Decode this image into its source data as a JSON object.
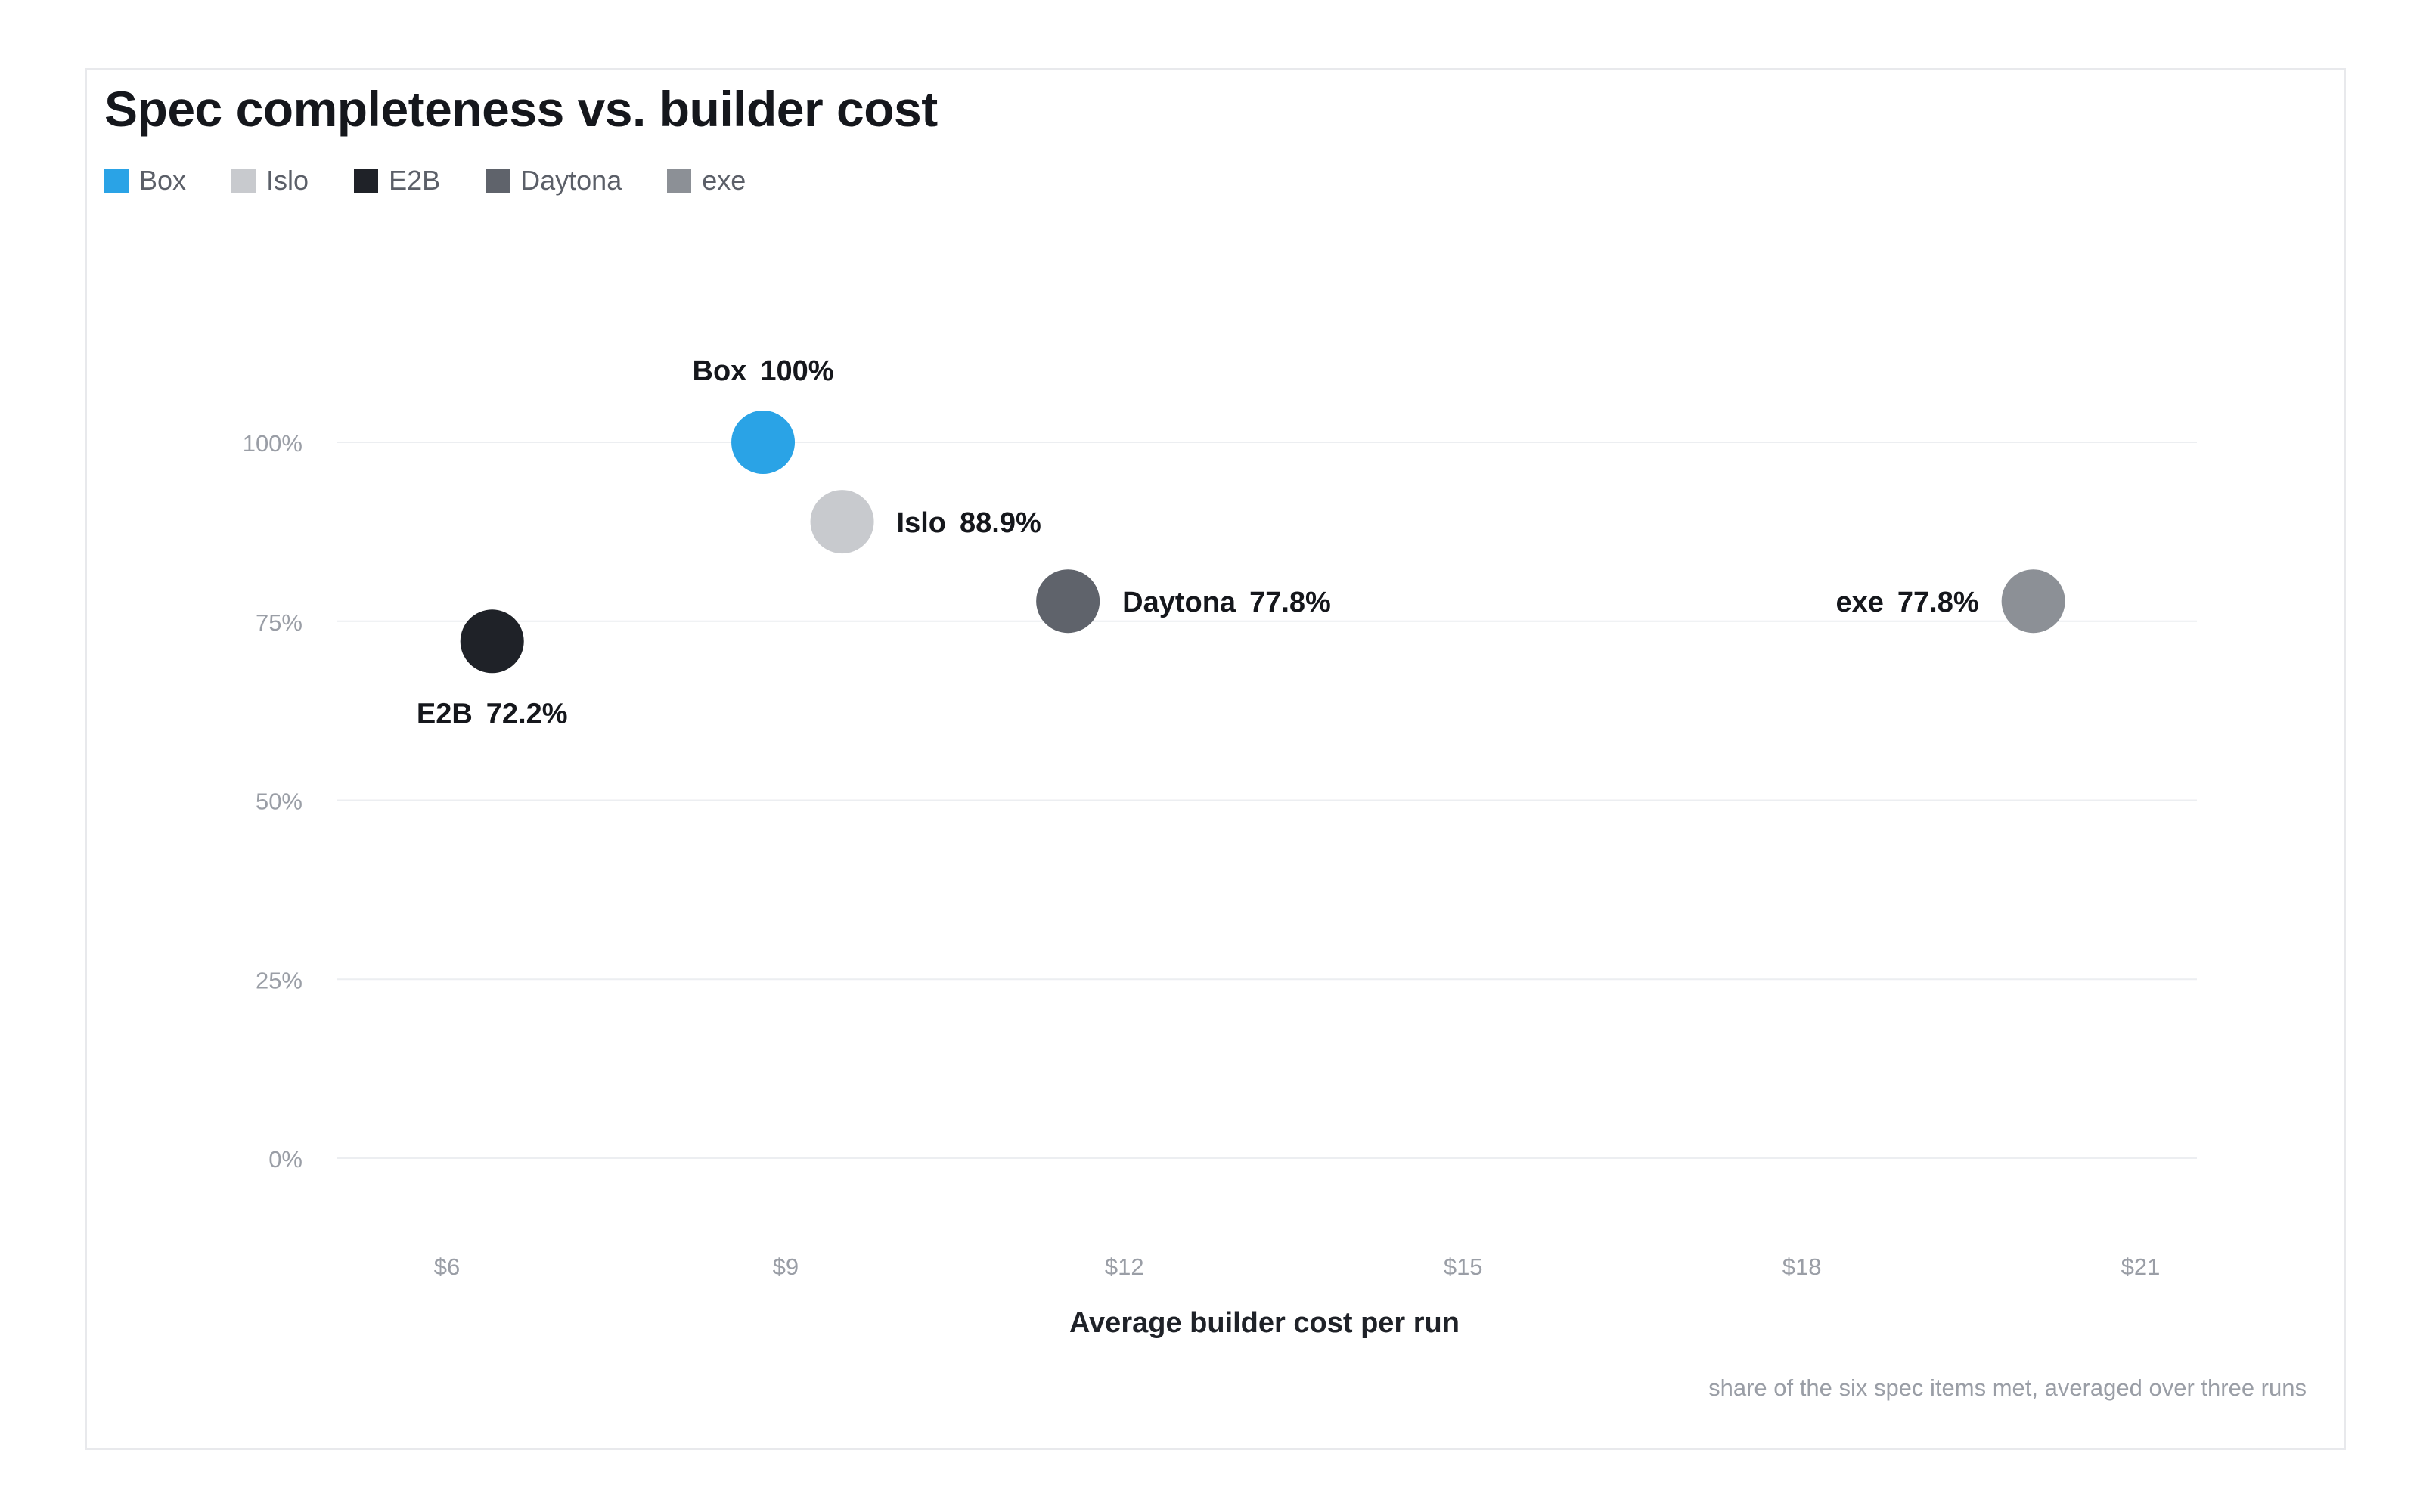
{
  "chart_data": {
    "type": "scatter",
    "title": "Spec completeness vs. builder cost",
    "xlabel": "Average builder cost per run",
    "ylabel": "",
    "xlim": [
      5,
      21.5
    ],
    "ylim": [
      0,
      100
    ],
    "x_ticks": [
      6,
      9,
      12,
      15,
      18,
      21
    ],
    "x_tick_labels": [
      "$6",
      "$9",
      "$12",
      "$15",
      "$18",
      "$21"
    ],
    "y_ticks": [
      0,
      25,
      50,
      75,
      100
    ],
    "y_tick_labels": [
      "0%",
      "25%",
      "50%",
      "75%",
      "100%"
    ],
    "grid": "horizontal",
    "legend_position": "top-left",
    "footnote": "share of the six spec items met, averaged over three runs",
    "series": [
      {
        "name": "Box",
        "x": 8.8,
        "y": 100,
        "label": "100%",
        "color": "#2aa3e6",
        "label_pos": "above"
      },
      {
        "name": "Islo",
        "x": 9.5,
        "y": 88.9,
        "label": "88.9%",
        "color": "#c8cace",
        "label_pos": "right"
      },
      {
        "name": "E2B",
        "x": 6.4,
        "y": 72.2,
        "label": "72.2%",
        "color": "#1f2228",
        "label_pos": "below"
      },
      {
        "name": "Daytona",
        "x": 11.5,
        "y": 77.8,
        "label": "77.8%",
        "color": "#5f636b",
        "label_pos": "right"
      },
      {
        "name": "exe",
        "x": 20.05,
        "y": 77.8,
        "label": "77.8%",
        "color": "#8c9096",
        "label_pos": "left"
      }
    ]
  }
}
